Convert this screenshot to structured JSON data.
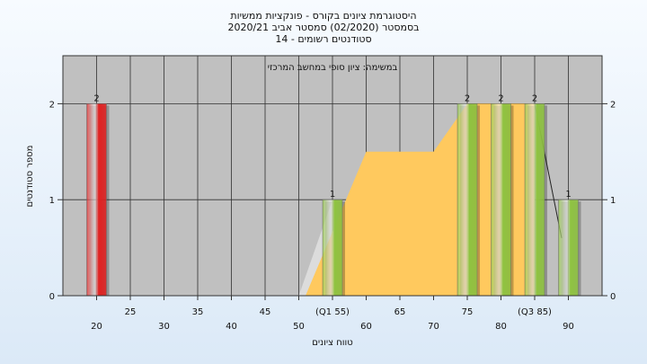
{
  "chart_data": {
    "type": "bar",
    "title_lines": [
      "היסטוגרמת ציונים בקורס - פונקציות ממשיות",
      "בסמסטר  (02/2020)  סמסטר אביב 2020/21",
      "סטודנטים רשומים - 14"
    ],
    "caption": "במשימה: ציון סופי במחשב המרכזי",
    "xlabel": "טווח ציונים",
    "ylabel": "מספר סטודנטים",
    "xlim": [
      15,
      95
    ],
    "ylim": [
      0,
      2.5
    ],
    "grid": true,
    "x_ticks": [
      {
        "x": 20,
        "label": "20",
        "row": "lower"
      },
      {
        "x": 25,
        "label": "25",
        "row": "upper"
      },
      {
        "x": 30,
        "label": "30",
        "row": "lower"
      },
      {
        "x": 35,
        "label": "35",
        "row": "upper"
      },
      {
        "x": 40,
        "label": "40",
        "row": "lower"
      },
      {
        "x": 45,
        "label": "45",
        "row": "upper"
      },
      {
        "x": 50,
        "label": "50",
        "row": "lower"
      },
      {
        "x": 55,
        "label": "(Q1 55)",
        "row": "upper"
      },
      {
        "x": 60,
        "label": "60",
        "row": "lower"
      },
      {
        "x": 65,
        "label": "65",
        "row": "upper"
      },
      {
        "x": 70,
        "label": "70",
        "row": "lower"
      },
      {
        "x": 75,
        "label": "75",
        "row": "upper"
      },
      {
        "x": 80,
        "label": "80",
        "row": "lower"
      },
      {
        "x": 85,
        "label": "(Q3 85)",
        "row": "upper"
      },
      {
        "x": 90,
        "label": "90",
        "row": "lower"
      }
    ],
    "y_ticks": [
      {
        "y": 0,
        "label": "0"
      },
      {
        "y": 1,
        "label": "1"
      },
      {
        "y": 2,
        "label": "2"
      }
    ],
    "bars": [
      {
        "x": 20,
        "value": 2,
        "label": "2",
        "color": "#e02020"
      },
      {
        "x": 55,
        "value": 1,
        "label": "1",
        "color": "#8fc341"
      },
      {
        "x": 75,
        "value": 2,
        "label": "2",
        "color": "#8fc341"
      },
      {
        "x": 80,
        "value": 2,
        "label": "2",
        "color": "#8fc341"
      },
      {
        "x": 85,
        "value": 2,
        "label": "2",
        "color": "#8fc341"
      },
      {
        "x": 90,
        "value": 1,
        "label": "1",
        "color": "#8fc341"
      }
    ],
    "box_area": [
      {
        "x": 51,
        "y": 0
      },
      {
        "x": 60,
        "y": 1.5
      },
      {
        "x": 70,
        "y": 1.5
      },
      {
        "x": 75,
        "y": 2
      },
      {
        "x": 85,
        "y": 2
      },
      {
        "x": 85,
        "y": 0
      }
    ],
    "left_tail": [
      {
        "x": 50,
        "y": 0
      },
      {
        "x": 55,
        "y": 1
      },
      {
        "x": 55,
        "y": 0
      }
    ],
    "right_whisker": [
      {
        "x": 85,
        "y": 2
      },
      {
        "x": 89,
        "y": 0.6
      }
    ],
    "colors": {
      "plot_bg": "#c0c0c0",
      "grid": "#303030",
      "box_fill": "#ffc95e",
      "tail_fill": "#dcdcdc",
      "red_bar": "#e02020",
      "green_bar": "#8fc341"
    }
  }
}
